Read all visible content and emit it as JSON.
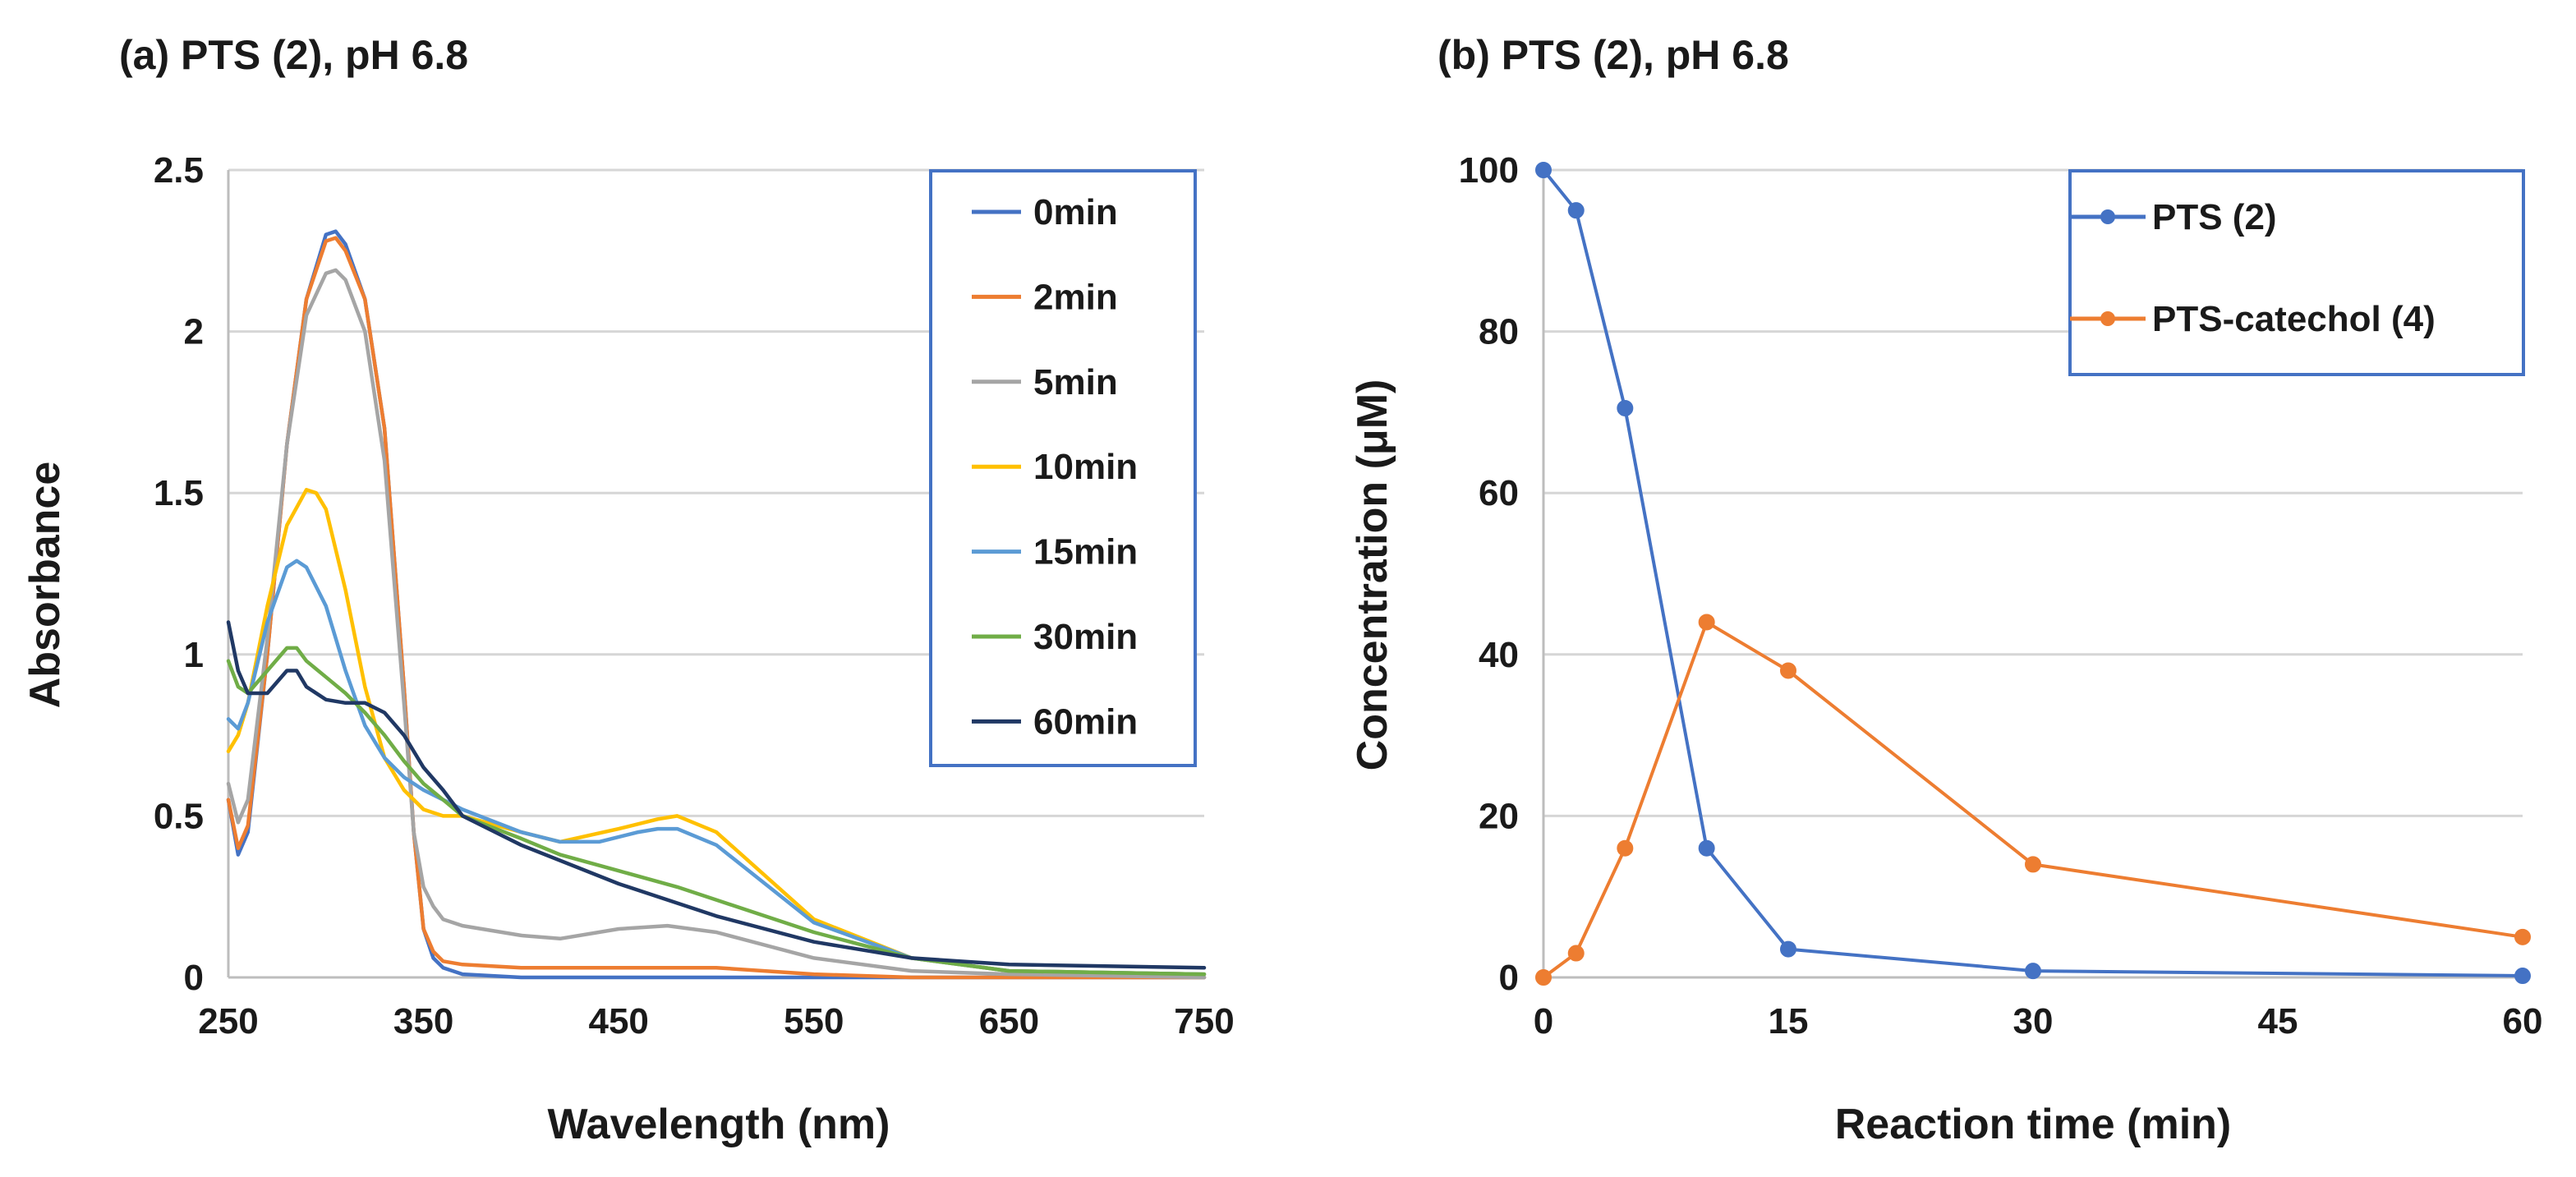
{
  "charts": [
    {
      "id": "a",
      "type": "line",
      "title": "(a) PTS (2), pH 6.8",
      "xlabel": "Wavelength (nm)",
      "ylabel": "Absorbance",
      "xlim": [
        250,
        750
      ],
      "ylim": [
        0,
        2.5
      ],
      "x_ticks": [
        "250",
        "350",
        "450",
        "550",
        "650",
        "750"
      ],
      "y_ticks": [
        "0",
        "0.5",
        "1",
        "1.5",
        "2",
        "2.5"
      ],
      "legend_position": "top-right",
      "series": [
        {
          "name": "0min",
          "color": "#4472C4",
          "x": [
            250,
            255,
            260,
            270,
            280,
            290,
            300,
            305,
            310,
            320,
            330,
            340,
            345,
            350,
            355,
            360,
            370,
            400,
            500,
            600,
            750
          ],
          "y": [
            0.55,
            0.38,
            0.45,
            1.0,
            1.65,
            2.1,
            2.3,
            2.31,
            2.27,
            2.1,
            1.7,
            0.9,
            0.45,
            0.15,
            0.06,
            0.03,
            0.01,
            0.0,
            0.0,
            0.0,
            0.0
          ]
        },
        {
          "name": "2min",
          "color": "#ED7D31",
          "x": [
            250,
            255,
            260,
            270,
            280,
            290,
            300,
            305,
            310,
            320,
            330,
            340,
            345,
            350,
            355,
            360,
            370,
            400,
            450,
            500,
            550,
            600,
            650,
            750
          ],
          "y": [
            0.55,
            0.4,
            0.47,
            1.0,
            1.65,
            2.1,
            2.28,
            2.29,
            2.25,
            2.1,
            1.7,
            0.9,
            0.45,
            0.15,
            0.08,
            0.05,
            0.04,
            0.03,
            0.03,
            0.03,
            0.01,
            0.0,
            0.0,
            0.0
          ]
        },
        {
          "name": "5min",
          "color": "#A5A5A5",
          "x": [
            250,
            255,
            260,
            270,
            280,
            290,
            300,
            305,
            310,
            320,
            330,
            340,
            345,
            350,
            355,
            360,
            370,
            400,
            420,
            450,
            475,
            500,
            550,
            600,
            650,
            750
          ],
          "y": [
            0.6,
            0.48,
            0.55,
            1.05,
            1.65,
            2.05,
            2.18,
            2.19,
            2.16,
            2.0,
            1.6,
            0.85,
            0.45,
            0.28,
            0.22,
            0.18,
            0.16,
            0.13,
            0.12,
            0.15,
            0.16,
            0.14,
            0.06,
            0.02,
            0.01,
            0.0
          ]
        },
        {
          "name": "10min",
          "color": "#FFC000",
          "x": [
            250,
            255,
            260,
            270,
            280,
            290,
            295,
            300,
            310,
            320,
            330,
            340,
            350,
            360,
            370,
            400,
            420,
            450,
            470,
            480,
            500,
            550,
            600,
            650,
            750
          ],
          "y": [
            0.7,
            0.75,
            0.85,
            1.15,
            1.4,
            1.51,
            1.5,
            1.45,
            1.2,
            0.9,
            0.68,
            0.58,
            0.52,
            0.5,
            0.5,
            0.45,
            0.42,
            0.46,
            0.49,
            0.5,
            0.45,
            0.18,
            0.06,
            0.02,
            0.01
          ]
        },
        {
          "name": "15min",
          "color": "#5B9BD5",
          "x": [
            250,
            255,
            260,
            270,
            280,
            285,
            290,
            300,
            310,
            320,
            330,
            340,
            350,
            360,
            370,
            400,
            420,
            440,
            460,
            470,
            480,
            500,
            550,
            600,
            650,
            750
          ],
          "y": [
            0.8,
            0.77,
            0.85,
            1.1,
            1.27,
            1.29,
            1.27,
            1.15,
            0.95,
            0.78,
            0.68,
            0.62,
            0.58,
            0.55,
            0.52,
            0.45,
            0.42,
            0.42,
            0.45,
            0.46,
            0.46,
            0.41,
            0.17,
            0.06,
            0.02,
            0.01
          ]
        },
        {
          "name": "30min",
          "color": "#70AD47",
          "x": [
            250,
            255,
            260,
            270,
            280,
            285,
            290,
            300,
            310,
            320,
            330,
            340,
            350,
            360,
            370,
            400,
            420,
            450,
            480,
            500,
            550,
            600,
            650,
            750
          ],
          "y": [
            0.98,
            0.9,
            0.88,
            0.95,
            1.02,
            1.02,
            0.98,
            0.93,
            0.88,
            0.82,
            0.75,
            0.67,
            0.6,
            0.55,
            0.5,
            0.43,
            0.38,
            0.33,
            0.28,
            0.24,
            0.14,
            0.06,
            0.02,
            0.01
          ]
        },
        {
          "name": "60min",
          "color": "#203864",
          "x": [
            250,
            255,
            260,
            270,
            280,
            285,
            290,
            300,
            310,
            320,
            330,
            340,
            350,
            360,
            370,
            400,
            450,
            500,
            550,
            600,
            650,
            750
          ],
          "y": [
            1.1,
            0.95,
            0.88,
            0.88,
            0.95,
            0.95,
            0.9,
            0.86,
            0.85,
            0.85,
            0.82,
            0.75,
            0.65,
            0.58,
            0.5,
            0.41,
            0.29,
            0.19,
            0.11,
            0.06,
            0.04,
            0.03
          ]
        }
      ]
    },
    {
      "id": "b",
      "type": "line",
      "title": "(b) PTS (2), pH 6.8",
      "xlabel": "Reaction time (min)",
      "ylabel": "Concentration (μM)",
      "xlim": [
        0,
        60
      ],
      "ylim": [
        0,
        100
      ],
      "x_ticks": [
        "0",
        "15",
        "30",
        "45",
        "60"
      ],
      "y_ticks": [
        "0",
        "20",
        "40",
        "60",
        "80",
        "100"
      ],
      "legend_position": "top-right",
      "series": [
        {
          "name": "PTS (2)",
          "color": "#4472C4",
          "x": [
            0,
            2,
            5,
            10,
            15,
            30,
            60
          ],
          "y": [
            100,
            95,
            70.5,
            16,
            3.5,
            0.8,
            0.2
          ]
        },
        {
          "name": "PTS-catechol (4)",
          "color": "#ED7D31",
          "x": [
            0,
            2,
            5,
            10,
            15,
            30,
            60
          ],
          "y": [
            0,
            3,
            16,
            44,
            38,
            14,
            5
          ]
        }
      ]
    }
  ]
}
